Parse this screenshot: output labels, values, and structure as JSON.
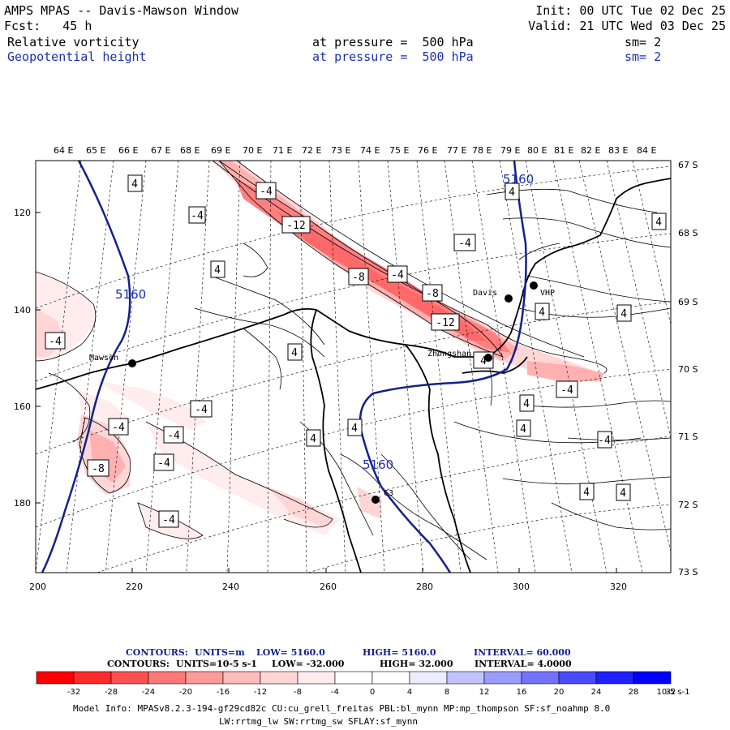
{
  "header": {
    "title": "AMPS MPAS -- Davis-Mawson Window",
    "init": "Init: 00 UTC Tue 02 Dec 25",
    "fcst": "Fcst:   45 h",
    "valid": "Valid: 21 UTC Wed 03 Dec 25",
    "field1": {
      "name": "Relative vorticity",
      "pressure": "at pressure =  500 hPa",
      "sm": "sm= 2"
    },
    "field2": {
      "name": "Geopotential height",
      "pressure": "at pressure =  500 hPa",
      "sm": "sm= 2"
    }
  },
  "axes": {
    "top_labels": [
      "64 E",
      "65 E",
      "66 E",
      "67 E",
      "68 E",
      "69 E",
      "70 E",
      "71 E",
      "72 E",
      "73 E",
      "74 E",
      "75 E",
      "76 E",
      "77 E",
      "78 E",
      "79 E",
      "80 E",
      "81 E",
      "82 E",
      "83 E",
      "84 E"
    ],
    "right_labels": [
      "67 S",
      "68 S",
      "69 S",
      "70 S",
      "71 S",
      "72 S",
      "73 S"
    ],
    "left_labels": [
      "120",
      "140",
      "160",
      "180"
    ],
    "bottom_labels": [
      "200",
      "220",
      "240",
      "260",
      "280",
      "300",
      "320"
    ]
  },
  "stations": [
    {
      "name": "Mawson"
    },
    {
      "name": "Davis"
    },
    {
      "name": "VHP"
    },
    {
      "name": "Zhongshan"
    },
    {
      "name": "C3"
    }
  ],
  "contour_labels": {
    "height": [
      "5160",
      "5160",
      "5160"
    ],
    "vorticity": [
      "4",
      "-4",
      "4",
      "-12",
      "-4",
      "-4",
      "4",
      "-8",
      "-4",
      "-8",
      "4",
      "4",
      "4",
      "-4",
      "-12",
      "-4",
      "4",
      "4",
      "-4",
      "-4",
      "4",
      "4",
      "-4",
      "-4",
      "4",
      "-8",
      "-4",
      "4",
      "4",
      "-4",
      "4"
    ]
  },
  "legend": {
    "line1": {
      "label": "CONTOURS:",
      "units": "UNITS=m",
      "low": "LOW=   5160.0",
      "high": "HIGH=  5160.0",
      "interval": "INTERVAL=   60.000"
    },
    "line2": {
      "label": "CONTOURS:",
      "units": "UNITS=10-5 s-1",
      "low": "LOW=  -32.000",
      "high": "HIGH=  32.000",
      "interval": "INTERVAL=    4.0000"
    }
  },
  "colorbar": {
    "ticks": [
      "-32",
      "-28",
      "-24",
      "-20",
      "-16",
      "-12",
      "-8",
      "-4",
      "0",
      "4",
      "8",
      "12",
      "16",
      "20",
      "24",
      "28",
      "32"
    ],
    "units": "10-5 s-1",
    "colors": [
      "#ff0000",
      "#ff2a2a",
      "#ff5050",
      "#ff7878",
      "#ff9a9a",
      "#ffbaba",
      "#ffd6d6",
      "#ffecec",
      "#ffffff",
      "#ffffff",
      "#ececff",
      "#c2c2ff",
      "#9a9aff",
      "#7272ff",
      "#4a4aff",
      "#2020ff",
      "#0000ff"
    ]
  },
  "model_info": {
    "line1": "Model Info: MPASv8.2.3-194-gf29cd82c CU:cu_grell_freitas PBL:bl_mynn MP:mp_thompson SF:sf_noahmp 8.0",
    "line2": "LW:rrtmg_lw SW:rrtmg_sw SFLAY:sf_mynn"
  }
}
